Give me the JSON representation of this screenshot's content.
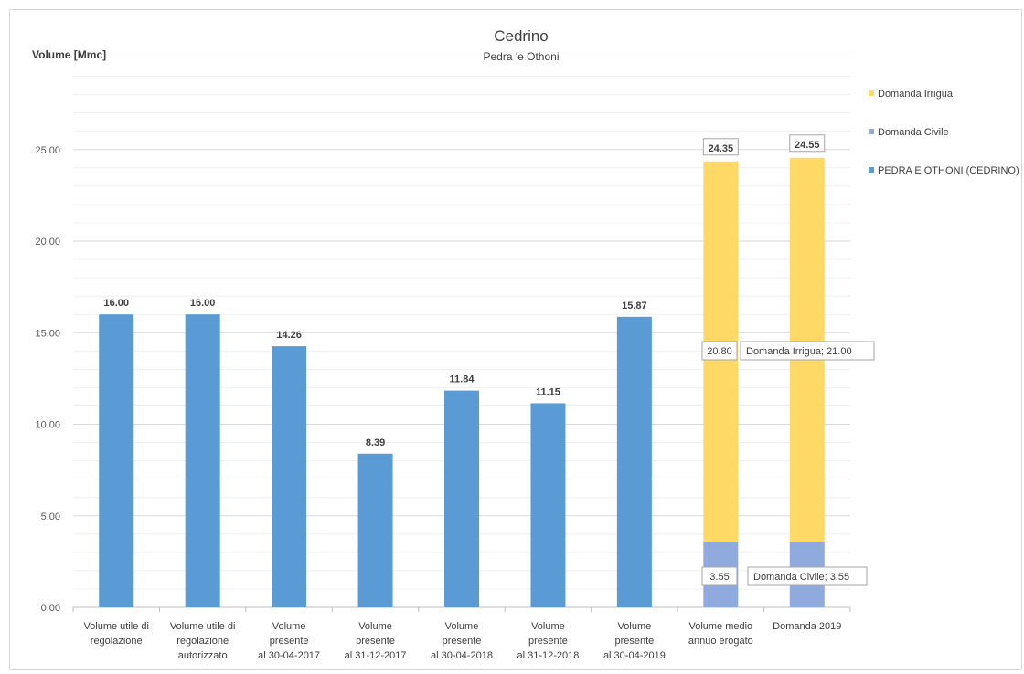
{
  "chart_data": {
    "type": "bar",
    "title": "Cedrino",
    "subtitle": "Pedra 'e Othoni",
    "ylabel": "Volume [Mmc]",
    "xlabel": "",
    "ylim": [
      0,
      30
    ],
    "y_ticks": [
      "0.00",
      "5.00",
      "10.00",
      "15.00",
      "20.00",
      "25.00"
    ],
    "grid": true,
    "legend_position": "right",
    "categories": [
      [
        "Volume utile di",
        "regolazione"
      ],
      [
        "Volume utile di",
        "regolazione",
        "autorizzato"
      ],
      [
        "Volume",
        "presente",
        "al 30-04-2017"
      ],
      [
        "Volume",
        "presente",
        "al 31-12-2017"
      ],
      [
        "Volume",
        "presente",
        "al 30-04-2018"
      ],
      [
        "Volume",
        "presente",
        "al 31-12-2018"
      ],
      [
        "Volume",
        "presente",
        "al 30-04-2019"
      ],
      [
        "Volume medio",
        "annuo erogato"
      ],
      [
        "Domanda 2019"
      ]
    ],
    "series": [
      {
        "name": "PEDRA E OTHONI (CEDRINO)",
        "color": "#5b9bd5",
        "values": [
          16.0,
          16.0,
          14.26,
          8.39,
          11.84,
          11.15,
          15.87,
          null,
          null
        ]
      },
      {
        "name": "Domanda Civile",
        "color": "#8faadc",
        "values": [
          null,
          null,
          null,
          null,
          null,
          null,
          null,
          3.55,
          3.55
        ]
      },
      {
        "name": "Domanda Irrigua",
        "color": "#ffd966",
        "values": [
          null,
          null,
          null,
          null,
          null,
          null,
          null,
          20.8,
          21.0
        ]
      }
    ],
    "bar_labels": [
      "16.00",
      "16.00",
      "14.26",
      "8.39",
      "11.84",
      "11.15",
      "15.87",
      "24.35",
      "24.55"
    ],
    "segment_labels": [
      {
        "category": 7,
        "text": "20.80"
      },
      {
        "category": 7,
        "text": "3.55"
      },
      {
        "category": 8,
        "text": "Domanda Irrigua; 21.00"
      },
      {
        "category": 8,
        "text": "Domanda Civile; 3.55"
      }
    ],
    "legend": [
      "Domanda Irrigua",
      "Domanda Civile",
      "PEDRA E OTHONI (CEDRINO)"
    ]
  }
}
